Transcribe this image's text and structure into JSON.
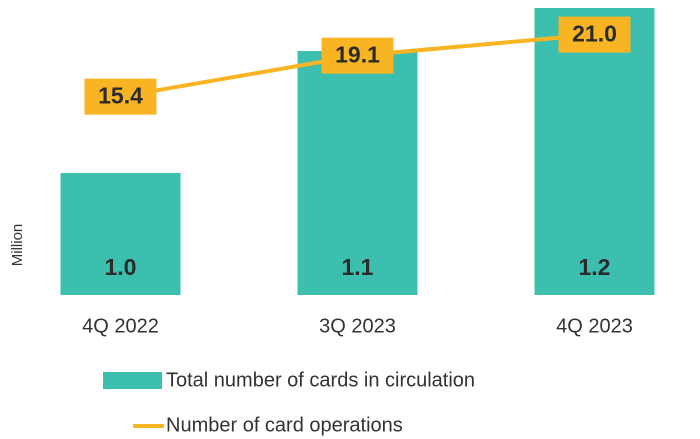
{
  "chart_data": {
    "type": "bar",
    "categories": [
      "4Q 2022",
      "3Q 2023",
      "4Q 2023"
    ],
    "y_label": "Million",
    "ylim": [
      0.8,
      1.2
    ],
    "y2lim": [
      -2.5,
      23.4
    ],
    "series": [
      {
        "name": "Total number of cards in circulation",
        "type": "bar",
        "color": "#3cbfae",
        "values": [
          0.97,
          1.14,
          1.2
        ],
        "value_labels": [
          "1.0",
          "1.1",
          "1.2"
        ]
      },
      {
        "name": "Number of card operations",
        "type": "line",
        "axis": "y2",
        "color": "#f8b423",
        "values": [
          15.4,
          19.1,
          21.0
        ],
        "value_labels": [
          "15.4",
          "19.1",
          "21.0"
        ]
      }
    ]
  }
}
